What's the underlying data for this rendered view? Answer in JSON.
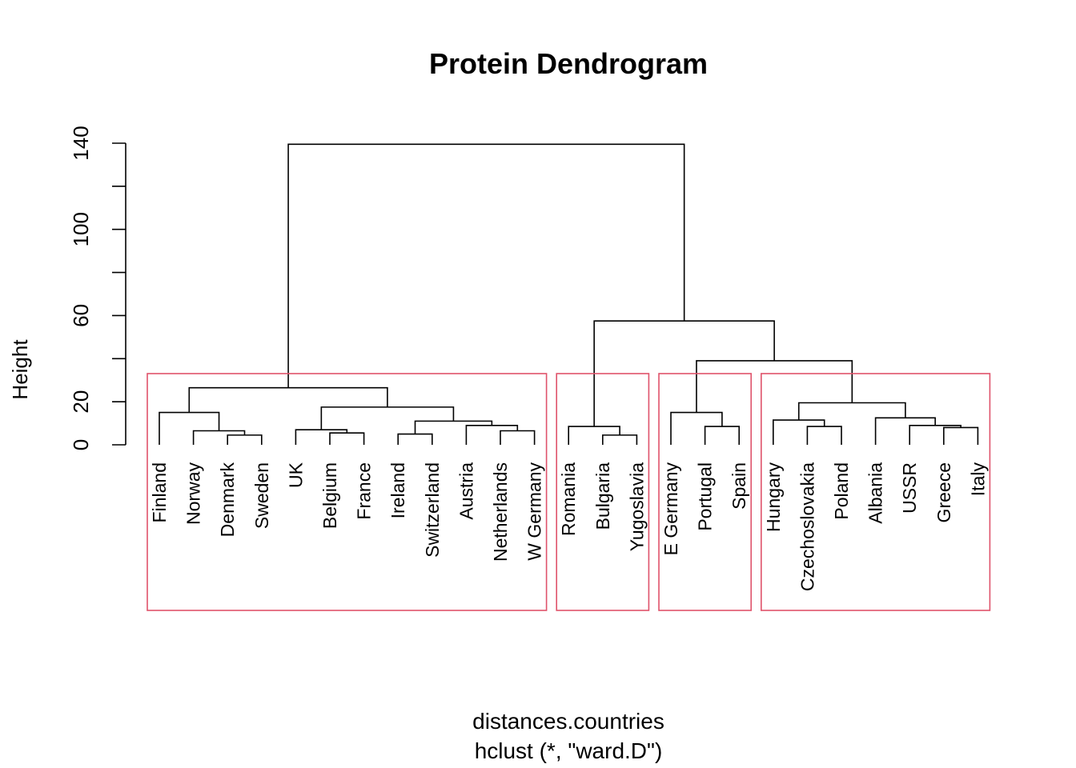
{
  "chart_data": {
    "type": "dendrogram",
    "title": "Protein Dendrogram",
    "ylabel": "Height",
    "xlabel": "distances.countries",
    "sublabel": "hclust (*, \"ward.D\")",
    "ylim": [
      0,
      140
    ],
    "y_ticks": [
      0,
      20,
      60,
      100,
      140
    ],
    "y_tick_marks": [
      0,
      20,
      40,
      60,
      80,
      100,
      120,
      140
    ],
    "leaves": [
      "Finland",
      "Norway",
      "Denmark",
      "Sweden",
      "UK",
      "Belgium",
      "France",
      "Ireland",
      "Switzerland",
      "Austria",
      "Netherlands",
      "W Germany",
      "Romania",
      "Bulgaria",
      "Yugoslavia",
      "E Germany",
      "Portugal",
      "Spain",
      "Hungary",
      "Czechoslovakia",
      "Poland",
      "Albania",
      "USSR",
      "Greece",
      "Italy"
    ],
    "merges": [
      {
        "id": "m1",
        "left": "Denmark",
        "right": "Sweden",
        "height": 4.5
      },
      {
        "id": "m2",
        "left": "Norway",
        "right": "m1",
        "height": 6.5
      },
      {
        "id": "m3",
        "left": "Finland",
        "right": "m2",
        "height": 15.0
      },
      {
        "id": "m4",
        "left": "Belgium",
        "right": "France",
        "height": 5.5
      },
      {
        "id": "m5",
        "left": "UK",
        "right": "m4",
        "height": 7.0
      },
      {
        "id": "m6",
        "left": "Ireland",
        "right": "Switzerland",
        "height": 5.0
      },
      {
        "id": "m7",
        "left": "Netherlands",
        "right": "W Germany",
        "height": 6.5
      },
      {
        "id": "m8",
        "left": "Austria",
        "right": "m7",
        "height": 9.0
      },
      {
        "id": "m9",
        "left": "m6",
        "right": "m8",
        "height": 11.0
      },
      {
        "id": "m10",
        "left": "m5",
        "right": "m9",
        "height": 17.5
      },
      {
        "id": "m11",
        "left": "m3",
        "right": "m10",
        "height": 26.5
      },
      {
        "id": "m12",
        "left": "Bulgaria",
        "right": "Yugoslavia",
        "height": 4.5
      },
      {
        "id": "m13",
        "left": "Romania",
        "right": "m12",
        "height": 8.5
      },
      {
        "id": "m14",
        "left": "Portugal",
        "right": "Spain",
        "height": 8.5
      },
      {
        "id": "m15",
        "left": "E Germany",
        "right": "m14",
        "height": 15.0
      },
      {
        "id": "m16",
        "left": "Czechoslovakia",
        "right": "Poland",
        "height": 8.5
      },
      {
        "id": "m17",
        "left": "Hungary",
        "right": "m16",
        "height": 11.5
      },
      {
        "id": "m18",
        "left": "Greece",
        "right": "Italy",
        "height": 8.0
      },
      {
        "id": "m19",
        "left": "USSR",
        "right": "m18",
        "height": 9.0
      },
      {
        "id": "m20",
        "left": "Albania",
        "right": "m19",
        "height": 12.5
      },
      {
        "id": "m21",
        "left": "m17",
        "right": "m20",
        "height": 19.5
      },
      {
        "id": "m22",
        "left": "m15",
        "right": "m21",
        "height": 39.0
      },
      {
        "id": "m23",
        "left": "m13",
        "right": "m22",
        "height": 57.5
      },
      {
        "id": "m24",
        "left": "m11",
        "right": "m23",
        "height": 139.5
      }
    ],
    "clusters": [
      {
        "first": "Finland",
        "last": "W Germany"
      },
      {
        "first": "Romania",
        "last": "Yugoslavia"
      },
      {
        "first": "E Germany",
        "last": "Spain"
      },
      {
        "first": "Hungary",
        "last": "Italy"
      }
    ],
    "cluster_color": "#df536b"
  }
}
